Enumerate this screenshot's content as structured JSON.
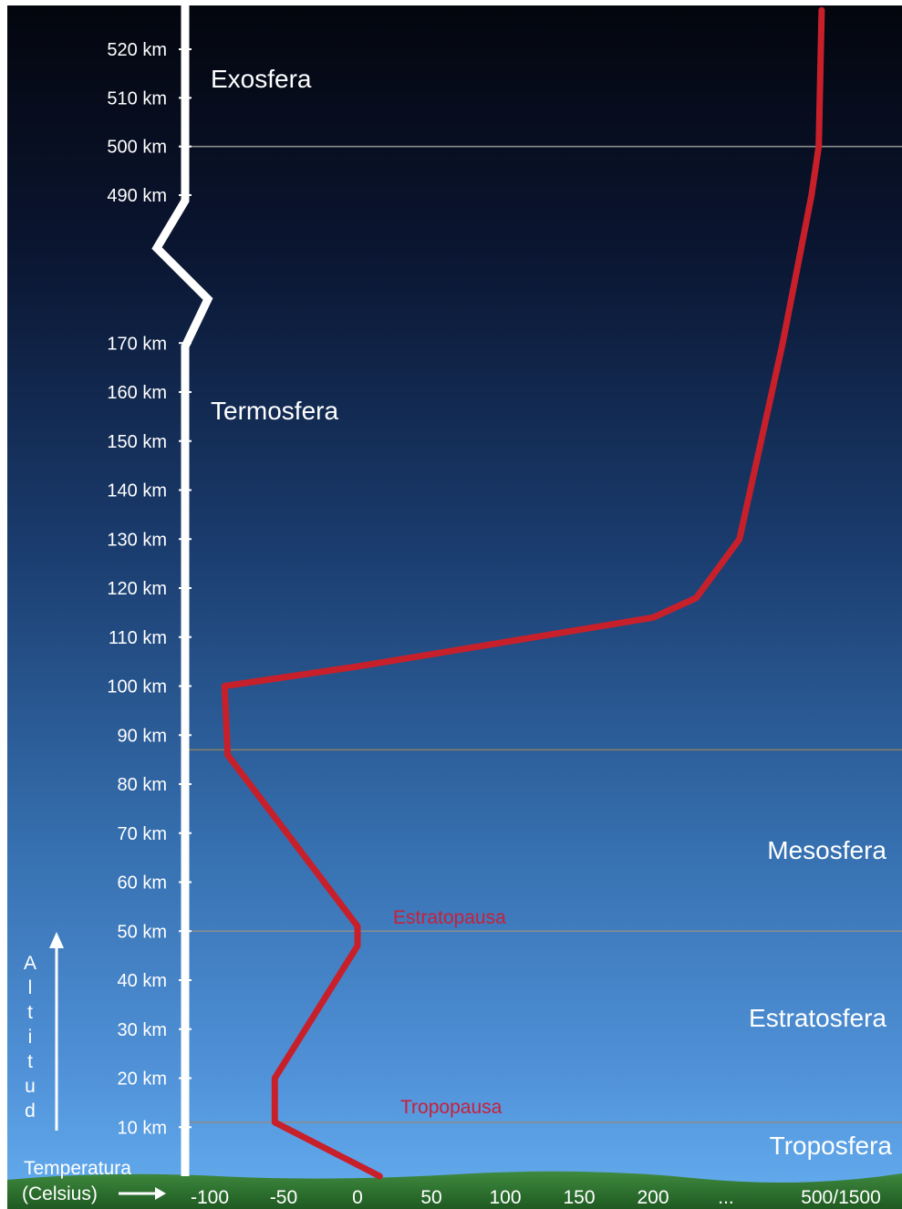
{
  "chart_data": {
    "type": "line",
    "y_ticks": [
      "10 km",
      "20 km",
      "30 km",
      "40 km",
      "50 km",
      "60 km",
      "70 km",
      "80 km",
      "90 km",
      "100 km",
      "110 km",
      "120 km",
      "130 km",
      "140 km",
      "150 km",
      "160 km",
      "170 km"
    ],
    "y_ticks_upper": [
      "490 km",
      "500 km",
      "510 km",
      "520 km"
    ],
    "x_ticks": [
      "-100",
      "-50",
      "0",
      "50",
      "100",
      "150",
      "200",
      "...",
      "500/1500"
    ],
    "xlabel": "Temperatura (Celsius)",
    "xlabel_line1": "Temperatura",
    "xlabel_line2": "(Celsius)",
    "ylabel": "Altitud",
    "layers": [
      "Exosfera",
      "Termosfera",
      "Mesosfera",
      "Estratosfera",
      "Troposfera"
    ],
    "boundaries": [
      "Estratopausa",
      "Tropopausa"
    ],
    "series": [
      {
        "x": [
          15,
          -56,
          -56,
          0,
          0,
          -88,
          -88,
          -90,
          0,
          120,
          200,
          230,
          260,
          290,
          310,
          315,
          317
        ],
        "y": [
          0,
          11,
          20,
          47,
          51,
          86,
          87,
          100,
          104,
          110,
          114,
          118,
          130,
          170,
          490,
          500,
          528
        ]
      }
    ],
    "ylim": [
      0,
      528
    ],
    "xlim": [
      -130,
      330
    ],
    "axis_break": "between 170 km and 490 km",
    "line_color": "#c8202a",
    "colors": {
      "sky_top": "#05070f",
      "sky_mid": "#183a6a",
      "sky_bottom": "#61a9ea",
      "ground": "#2c6e2f",
      "axis": "#ffffff",
      "boundary_line": "#8c8c8c",
      "mesopause_line": "#8a8060",
      "pause_label": "#c8203a"
    }
  }
}
